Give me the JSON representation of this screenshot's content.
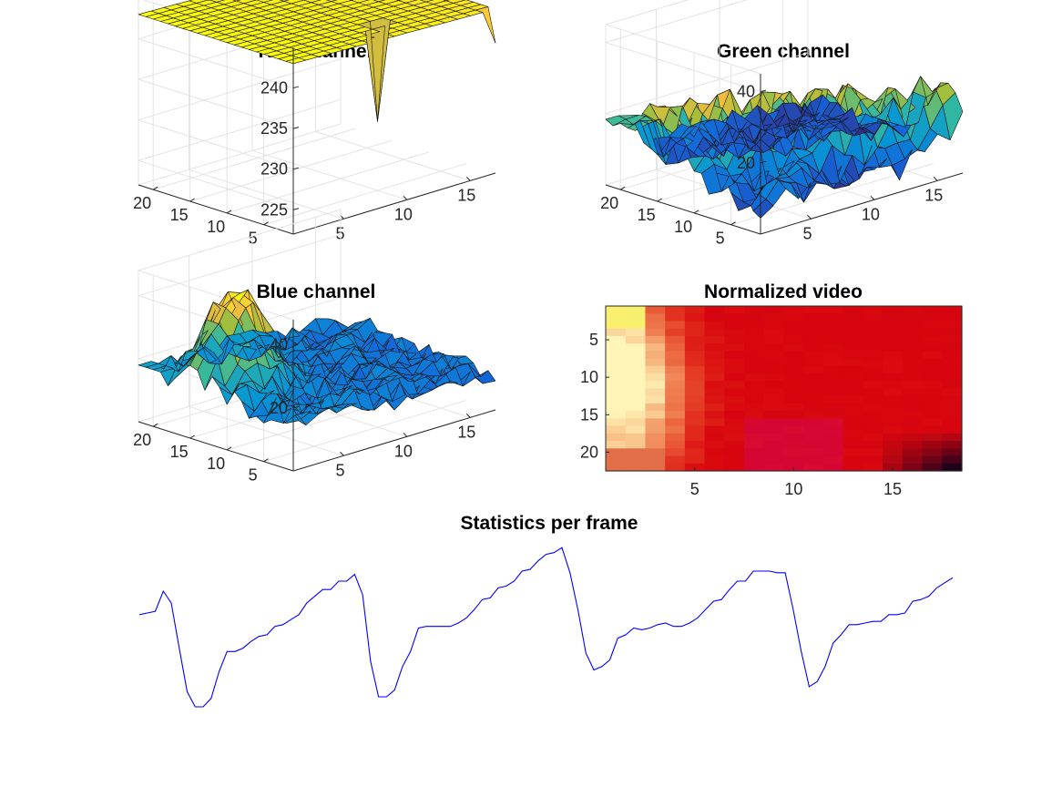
{
  "chart_data": [
    {
      "type": "surface",
      "title": "Red channel",
      "z_ticks": [
        225,
        230,
        235,
        240
      ],
      "x_ticks": [
        5,
        10,
        15
      ],
      "y_ticks": [
        5,
        10,
        15,
        20
      ],
      "zlim": [
        222,
        245
      ],
      "x_range": [
        1,
        17
      ],
      "y_range": [
        1,
        22
      ],
      "colormap": "parula"
    },
    {
      "type": "surface",
      "title": "Green channel",
      "z_ticks": [
        20,
        40
      ],
      "x_ticks": [
        5,
        10,
        15
      ],
      "y_ticks": [
        5,
        10,
        15,
        20
      ],
      "zlim": [
        0,
        45
      ],
      "x_range": [
        1,
        17
      ],
      "y_range": [
        1,
        22
      ],
      "colormap": "parula"
    },
    {
      "type": "surface",
      "title": "Blue channel",
      "z_ticks": [
        20,
        40
      ],
      "x_ticks": [
        5,
        10,
        15
      ],
      "y_ticks": [
        5,
        10,
        15,
        20
      ],
      "zlim": [
        0,
        48
      ],
      "x_range": [
        1,
        17
      ],
      "y_range": [
        1,
        22
      ],
      "colormap": "parula"
    },
    {
      "type": "heatmap",
      "title": "Normalized video",
      "x_ticks": [
        5,
        10,
        15
      ],
      "y_ticks": [
        5,
        10,
        15,
        20
      ],
      "x_range": [
        0.5,
        18.5
      ],
      "y_range": [
        0.5,
        22.5
      ],
      "y_direction": "reverse"
    },
    {
      "type": "line",
      "title": "Statistics per frame",
      "axes_visible": false,
      "color": "#0000ff",
      "y": [
        0.55,
        0.56,
        0.57,
        0.69,
        0.62,
        0.35,
        0.09,
        0.0,
        0.0,
        0.05,
        0.21,
        0.33,
        0.33,
        0.35,
        0.39,
        0.42,
        0.43,
        0.48,
        0.49,
        0.52,
        0.55,
        0.62,
        0.66,
        0.7,
        0.7,
        0.75,
        0.75,
        0.79,
        0.67,
        0.27,
        0.06,
        0.06,
        0.1,
        0.24,
        0.33,
        0.47,
        0.48,
        0.48,
        0.48,
        0.48,
        0.5,
        0.53,
        0.58,
        0.64,
        0.65,
        0.71,
        0.72,
        0.75,
        0.81,
        0.82,
        0.87,
        0.91,
        0.92,
        0.95,
        0.8,
        0.58,
        0.32,
        0.22,
        0.24,
        0.28,
        0.41,
        0.43,
        0.47,
        0.46,
        0.47,
        0.49,
        0.5,
        0.48,
        0.48,
        0.5,
        0.53,
        0.58,
        0.63,
        0.64,
        0.7,
        0.75,
        0.75,
        0.81,
        0.81,
        0.81,
        0.8,
        0.8,
        0.58,
        0.33,
        0.12,
        0.15,
        0.24,
        0.38,
        0.43,
        0.49,
        0.49,
        0.5,
        0.51,
        0.51,
        0.55,
        0.55,
        0.56,
        0.63,
        0.64,
        0.66,
        0.71,
        0.74,
        0.77
      ]
    }
  ]
}
